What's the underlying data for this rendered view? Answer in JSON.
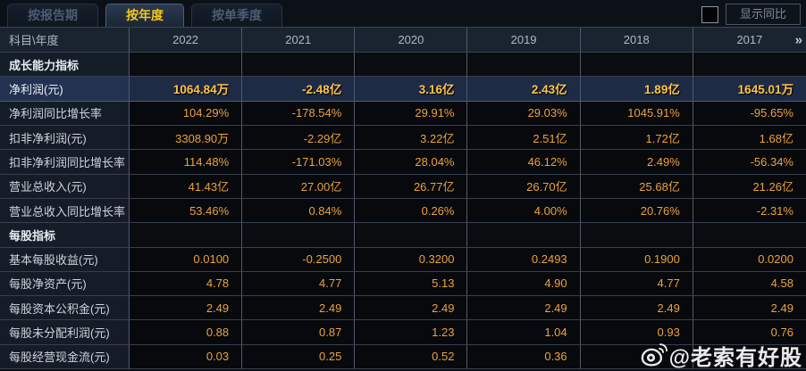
{
  "tabbar": {
    "tabs": [
      {
        "name": "tab-by-report-period",
        "label": "按报告期",
        "active": false
      },
      {
        "name": "tab-by-year",
        "label": "按年度",
        "active": true
      },
      {
        "name": "tab-by-quarter",
        "label": "按单季度",
        "active": false
      }
    ],
    "show_yoy_label": "显示同比",
    "show_yoy_checked": false
  },
  "table": {
    "corner_header": "科目\\年度",
    "year_columns": [
      "2022",
      "2021",
      "2020",
      "2019",
      "2018",
      "2017"
    ],
    "more_years_icon": "»",
    "rows": [
      {
        "type": "section",
        "label": "成长能力指标",
        "values": [
          "",
          "",
          "",
          "",
          "",
          ""
        ]
      },
      {
        "type": "highlight",
        "label": "净利润(元)",
        "values": [
          "1064.84万",
          "-2.48亿",
          "3.16亿",
          "2.43亿",
          "1.89亿",
          "1645.01万"
        ]
      },
      {
        "type": "data",
        "label": "净利润同比增长率",
        "values": [
          "104.29%",
          "-178.54%",
          "29.91%",
          "29.03%",
          "1045.91%",
          "-95.65%"
        ]
      },
      {
        "type": "data",
        "label": "扣非净利润(元)",
        "values": [
          "3308.90万",
          "-2.29亿",
          "3.22亿",
          "2.51亿",
          "1.72亿",
          "1.68亿"
        ]
      },
      {
        "type": "data",
        "label": "扣非净利润同比增长率",
        "values": [
          "114.48%",
          "-171.03%",
          "28.04%",
          "46.12%",
          "2.49%",
          "-56.34%"
        ]
      },
      {
        "type": "data",
        "label": "营业总收入(元)",
        "values": [
          "41.43亿",
          "27.00亿",
          "26.77亿",
          "26.70亿",
          "25.68亿",
          "21.26亿"
        ]
      },
      {
        "type": "data",
        "label": "营业总收入同比增长率",
        "values": [
          "53.46%",
          "0.84%",
          "0.26%",
          "4.00%",
          "20.76%",
          "-2.31%"
        ]
      },
      {
        "type": "section",
        "label": "每股指标",
        "values": [
          "",
          "",
          "",
          "",
          "",
          ""
        ]
      },
      {
        "type": "data",
        "label": "基本每股收益(元)",
        "values": [
          "0.0100",
          "-0.2500",
          "0.3200",
          "0.2493",
          "0.1900",
          "0.0200"
        ]
      },
      {
        "type": "data",
        "label": "每股净资产(元)",
        "values": [
          "4.78",
          "4.77",
          "5.13",
          "4.90",
          "4.77",
          "4.58"
        ]
      },
      {
        "type": "data",
        "label": "每股资本公积金(元)",
        "values": [
          "2.49",
          "2.49",
          "2.49",
          "2.49",
          "2.49",
          "2.49"
        ]
      },
      {
        "type": "data",
        "label": "每股未分配利润(元)",
        "values": [
          "0.88",
          "0.87",
          "1.23",
          "1.04",
          "0.93",
          "0.76"
        ]
      },
      {
        "type": "data",
        "label": "每股经营现金流(元)",
        "values": [
          "0.03",
          "0.25",
          "0.52",
          "0.36",
          "",
          ""
        ]
      }
    ]
  },
  "watermark": {
    "text": "@老索有好股",
    "icon": "weibo-icon"
  },
  "colors": {
    "accent_gold": "#eda23c",
    "highlight_gold": "#ffc445",
    "active_tab_text": "#f3c51e",
    "highlight_row_bg": "#1e2b45",
    "header_bg": "#1a2330",
    "label_bg": "#141c28",
    "page_bg": "#0b0f15"
  }
}
